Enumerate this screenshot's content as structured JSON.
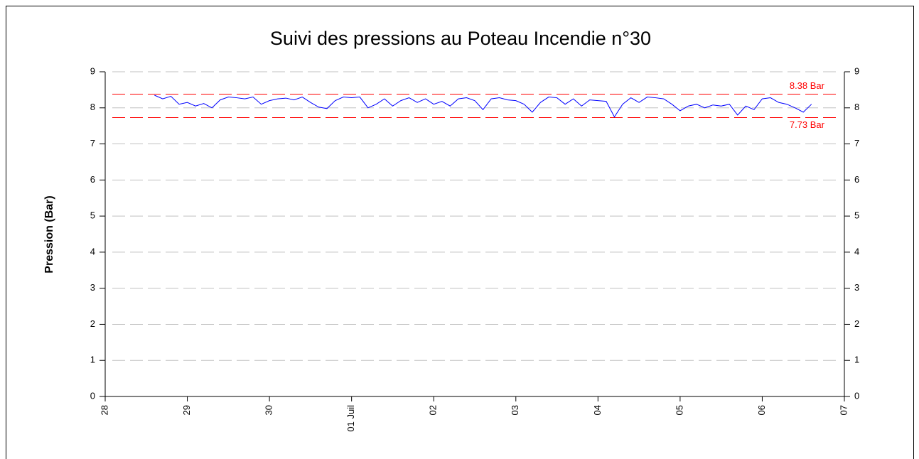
{
  "chart_data": {
    "type": "line",
    "title": "Suivi des pressions au Poteau Incendie n°30",
    "y_label": "Pression  (Bar)",
    "xlim": [
      0,
      9
    ],
    "xticks": [
      {
        "value": 0,
        "label": "28"
      },
      {
        "value": 1,
        "label": "29"
      },
      {
        "value": 2,
        "label": "30"
      },
      {
        "value": 3,
        "label": "01 Juil"
      },
      {
        "value": 4,
        "label": "02"
      },
      {
        "value": 5,
        "label": "03"
      },
      {
        "value": 6,
        "label": "04"
      },
      {
        "value": 7,
        "label": "05"
      },
      {
        "value": 8,
        "label": "06"
      },
      {
        "value": 9,
        "label": "07"
      }
    ],
    "ylim": [
      0,
      9
    ],
    "yticks": [
      0,
      1,
      2,
      3,
      4,
      5,
      6,
      7,
      8,
      9
    ],
    "y2lim": [
      0,
      9
    ],
    "y2ticks": [
      0,
      1,
      2,
      3,
      4,
      5,
      6,
      7,
      8,
      9
    ],
    "grid": true,
    "grid_color": "#c0c0c0",
    "x": [
      0.6,
      0.7,
      0.8,
      0.9,
      1.0,
      1.1,
      1.2,
      1.3,
      1.4,
      1.5,
      1.6,
      1.7,
      1.8,
      1.9,
      2.0,
      2.1,
      2.2,
      2.3,
      2.4,
      2.5,
      2.6,
      2.7,
      2.8,
      2.9,
      3.0,
      3.1,
      3.2,
      3.3,
      3.4,
      3.5,
      3.6,
      3.7,
      3.8,
      3.9,
      4.0,
      4.1,
      4.2,
      4.3,
      4.4,
      4.5,
      4.6,
      4.7,
      4.8,
      4.9,
      5.0,
      5.1,
      5.2,
      5.3,
      5.4,
      5.5,
      5.6,
      5.7,
      5.8,
      5.9,
      6.0,
      6.1,
      6.2,
      6.3,
      6.4,
      6.5,
      6.6,
      6.7,
      6.8,
      6.9,
      7.0,
      7.1,
      7.2,
      7.3,
      7.4,
      7.5,
      7.6,
      7.7,
      7.8,
      7.9,
      8.0,
      8.1,
      8.2,
      8.3,
      8.4,
      8.5,
      8.6
    ],
    "series": [
      {
        "name": "Pression",
        "color": "#0000ff",
        "values": [
          8.35,
          8.25,
          8.32,
          8.1,
          8.15,
          8.05,
          8.12,
          8.0,
          8.22,
          8.3,
          8.28,
          8.25,
          8.3,
          8.1,
          8.2,
          8.25,
          8.27,
          8.22,
          8.3,
          8.15,
          8.02,
          7.98,
          8.2,
          8.3,
          8.28,
          8.3,
          8.0,
          8.1,
          8.25,
          8.05,
          8.2,
          8.28,
          8.15,
          8.25,
          8.1,
          8.18,
          8.05,
          8.25,
          8.28,
          8.2,
          7.95,
          8.25,
          8.28,
          8.22,
          8.2,
          8.1,
          7.88,
          8.15,
          8.3,
          8.28,
          8.1,
          8.25,
          8.05,
          8.22,
          8.2,
          8.18,
          7.75,
          8.1,
          8.28,
          8.15,
          8.3,
          8.28,
          8.25,
          8.1,
          7.92,
          8.05,
          8.1,
          8.0,
          8.08,
          8.05,
          8.1,
          7.8,
          8.05,
          7.95,
          8.25,
          8.28,
          8.15,
          8.1,
          8.0,
          7.88,
          8.1
        ]
      }
    ],
    "thresholds": [
      {
        "value": 8.38,
        "label": "8.38 Bar",
        "color": "#ff0000"
      },
      {
        "value": 7.73,
        "label": "7.73 Bar",
        "color": "#ff0000"
      }
    ]
  }
}
